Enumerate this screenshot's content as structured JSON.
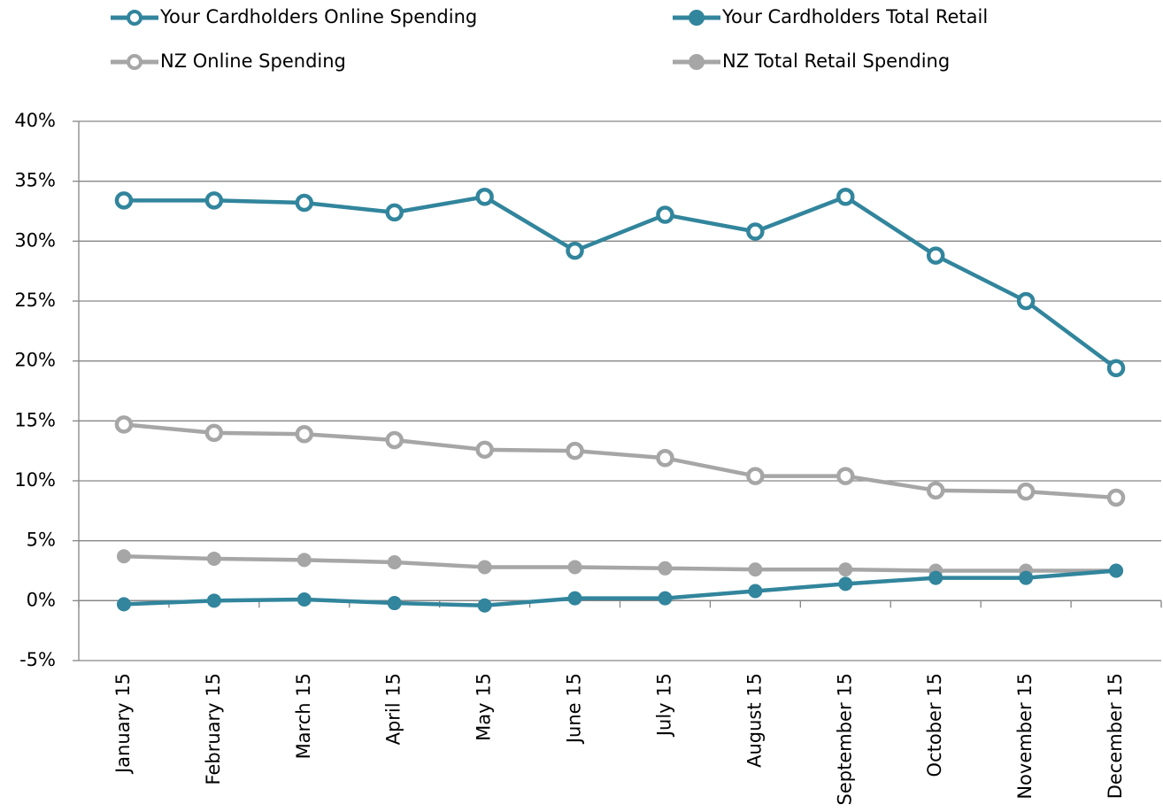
{
  "chart_data": {
    "type": "line",
    "categories": [
      "January 15",
      "February 15",
      "March 15",
      "April 15",
      "May 15",
      "June 15",
      "July 15",
      "August 15",
      "September 15",
      "October 15",
      "November 15",
      "December 15"
    ],
    "series": [
      {
        "name": "Your Cardholders Online Spending",
        "color": "#31859c",
        "marker": "hollow",
        "values": [
          33.4,
          33.4,
          33.2,
          32.4,
          33.7,
          29.2,
          32.2,
          30.8,
          33.7,
          28.8,
          25.0,
          19.4
        ]
      },
      {
        "name": "Your Cardholders Total Retail",
        "color": "#31859c",
        "marker": "filled",
        "values": [
          -0.3,
          0,
          0.1,
          -0.2,
          -0.4,
          0.2,
          0.2,
          0.8,
          1.4,
          1.9,
          1.9,
          2.5
        ]
      },
      {
        "name": "NZ Online Spending",
        "color": "#a6a6a6",
        "marker": "hollow",
        "values": [
          14.7,
          14.0,
          13.9,
          13.4,
          12.6,
          12.5,
          11.9,
          10.4,
          10.4,
          9.2,
          9.1,
          8.6
        ]
      },
      {
        "name": "NZ Total Retail Spending",
        "color": "#a6a6a6",
        "marker": "filled",
        "values": [
          3.7,
          3.5,
          3.4,
          3.2,
          2.8,
          2.8,
          2.7,
          2.6,
          2.6,
          2.5,
          2.5,
          2.5
        ]
      }
    ],
    "ylim": [
      -5,
      40
    ],
    "yticks": [
      {
        "value": -5,
        "label": "-5%"
      },
      {
        "value": 0,
        "label": "0%"
      },
      {
        "value": 5,
        "label": "5%"
      },
      {
        "value": 10,
        "label": "10%"
      },
      {
        "value": 15,
        "label": "15%"
      },
      {
        "value": 20,
        "label": "20%"
      },
      {
        "value": 25,
        "label": "25%"
      },
      {
        "value": 30,
        "label": "30%"
      },
      {
        "value": 35,
        "label": "35%"
      },
      {
        "value": 40,
        "label": "40%"
      }
    ],
    "grid": true,
    "legend": "top"
  }
}
